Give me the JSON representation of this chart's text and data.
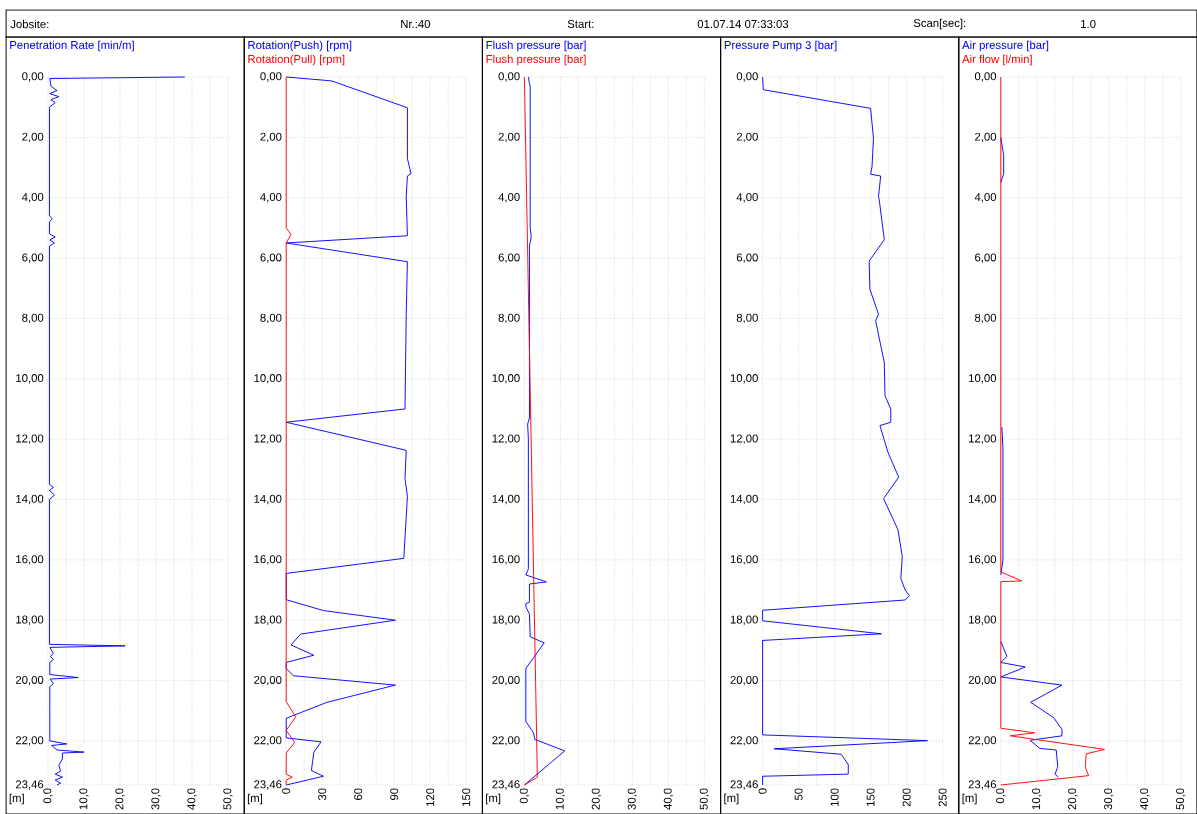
{
  "chart_data": [
    {
      "type": "other",
      "annotations": [
        "Jobsite:",
        "Nr.:40",
        "Start:",
        "01.07.14 07:33:03",
        "Scan[sec]:",
        "1.0"
      ]
    },
    {
      "type": "line",
      "ylabel": "[m]",
      "grid": true,
      "xlim": [
        0,
        50
      ],
      "ylim": [
        23.46,
        0
      ],
      "xticks": [
        {
          "value": 0,
          "label": "0,0"
        },
        {
          "value": 10,
          "label": "10,0"
        },
        {
          "value": 20,
          "label": "20,0"
        },
        {
          "value": 30,
          "label": "30,0"
        },
        {
          "value": 40,
          "label": "40,0"
        },
        {
          "value": 50,
          "label": "50,0"
        }
      ],
      "yticks": [
        {
          "value": 0,
          "label": "0,00"
        },
        {
          "value": 2,
          "label": "2,00"
        },
        {
          "value": 4,
          "label": "4,00"
        },
        {
          "value": 6,
          "label": "6,00"
        },
        {
          "value": 8,
          "label": "8,00"
        },
        {
          "value": 10,
          "label": "10,00"
        },
        {
          "value": 12,
          "label": "12,00"
        },
        {
          "value": 14,
          "label": "14,00"
        },
        {
          "value": 16,
          "label": "16,00"
        },
        {
          "value": 18,
          "label": "18,00"
        },
        {
          "value": 20,
          "label": "20,00"
        },
        {
          "value": 22,
          "label": "22,00"
        },
        {
          "value": 23.46,
          "label": "23,46"
        }
      ],
      "series": [
        {
          "name": "Penetration Rate [min/m]",
          "color": "#0000ff",
          "x": [
            38,
            0.5,
            0.8,
            2.5,
            0.5,
            3,
            0.8,
            2,
            0.4,
            0.4,
            1.2,
            0.4,
            0.4,
            2,
            0.5,
            1.8,
            0.4,
            0.4,
            1.5,
            0.4,
            1.8,
            0.4,
            0.4,
            21.4,
            0.5,
            1.5,
            0.6,
            1.5,
            0.5,
            0.5,
            8.4,
            0.6,
            1.5,
            0.5,
            0.5,
            5.2,
            1,
            2.5,
            10,
            4,
            4,
            3,
            3.5,
            2,
            4,
            2,
            3.5,
            2.5
          ],
          "values": [
            0,
            0.05,
            0.3,
            0.45,
            0.55,
            0.65,
            0.75,
            0.85,
            1.0,
            4.6,
            4.7,
            4.8,
            5.2,
            5.3,
            5.4,
            5.5,
            5.6,
            13.5,
            13.6,
            13.7,
            13.85,
            14.0,
            18.8,
            18.85,
            18.9,
            19.1,
            19.2,
            19.3,
            19.4,
            19.8,
            19.9,
            19.95,
            20.1,
            20.2,
            22.0,
            22.1,
            22.15,
            22.3,
            22.37,
            22.4,
            22.6,
            22.8,
            23.0,
            23.1,
            23.2,
            23.3,
            23.4,
            23.46
          ]
        }
      ]
    },
    {
      "type": "line",
      "ylabel": "[m]",
      "grid": true,
      "xlim": [
        0,
        150
      ],
      "ylim": [
        23.46,
        0
      ],
      "xticks": [
        0,
        30,
        60,
        90,
        120,
        150
      ],
      "yticks": [
        {
          "value": 0,
          "label": "0,00"
        },
        {
          "value": 2,
          "label": "2,00"
        },
        {
          "value": 4,
          "label": "4,00"
        },
        {
          "value": 6,
          "label": "6,00"
        },
        {
          "value": 8,
          "label": "8,00"
        },
        {
          "value": 10,
          "label": "10,00"
        },
        {
          "value": 12,
          "label": "12,00"
        },
        {
          "value": 14,
          "label": "14,00"
        },
        {
          "value": 16,
          "label": "16,00"
        },
        {
          "value": 18,
          "label": "18,00"
        },
        {
          "value": 20,
          "label": "20,00"
        },
        {
          "value": 22,
          "label": "22,00"
        },
        {
          "value": 23.46,
          "label": "23,46"
        }
      ],
      "series": [
        {
          "name": "Rotation(Push) [rpm]",
          "color": "#0000ff",
          "x": [
            0,
            38,
            101,
            101,
            104,
            101,
            100,
            101,
            0,
            101,
            100,
            99,
            0,
            100,
            99,
            101,
            98,
            0,
            0,
            31,
            91,
            12,
            4,
            23,
            0,
            0,
            6,
            91,
            34,
            0,
            0,
            29,
            23,
            21,
            31,
            0
          ],
          "values": [
            0,
            0.13,
            1.02,
            2.7,
            3.2,
            3.28,
            3.96,
            5.26,
            5.5,
            6.12,
            7.87,
            11.0,
            11.44,
            12.37,
            13.3,
            13.9,
            15.95,
            16.45,
            17.32,
            17.68,
            18.0,
            18.46,
            18.82,
            19.16,
            19.4,
            19.6,
            19.84,
            20.15,
            20.72,
            21.25,
            21.9,
            22.03,
            22.38,
            22.98,
            23.17,
            23.46
          ]
        },
        {
          "name": "Rotation(Pull) [rpm]",
          "color": "#ff0000",
          "x": [
            0,
            0,
            4,
            0,
            0,
            8,
            0,
            7,
            0,
            0,
            5,
            0,
            0
          ],
          "values": [
            0,
            5.0,
            5.22,
            5.5,
            20.7,
            21.2,
            21.65,
            22.05,
            22.4,
            23.1,
            23.2,
            23.3,
            23.46
          ]
        }
      ]
    },
    {
      "type": "line",
      "ylabel": "[m]",
      "grid": true,
      "xlim": [
        0,
        50
      ],
      "ylim": [
        23.46,
        0
      ],
      "xticks": [
        {
          "value": 0,
          "label": "0,0"
        },
        {
          "value": 10,
          "label": "10,0"
        },
        {
          "value": 20,
          "label": "20,0"
        },
        {
          "value": 30,
          "label": "30,0"
        },
        {
          "value": 40,
          "label": "40,0"
        },
        {
          "value": 50,
          "label": "50,0"
        }
      ],
      "yticks": [
        {
          "value": 0,
          "label": "0,00"
        },
        {
          "value": 2,
          "label": "2,00"
        },
        {
          "value": 4,
          "label": "4,00"
        },
        {
          "value": 6,
          "label": "6,00"
        },
        {
          "value": 8,
          "label": "8,00"
        },
        {
          "value": 10,
          "label": "10,00"
        },
        {
          "value": 12,
          "label": "12,00"
        },
        {
          "value": 14,
          "label": "14,00"
        },
        {
          "value": 16,
          "label": "16,00"
        },
        {
          "value": 18,
          "label": "18,00"
        },
        {
          "value": 20,
          "label": "20,00"
        },
        {
          "value": 22,
          "label": "22,00"
        },
        {
          "value": 23.46,
          "label": "23,46"
        }
      ],
      "series": [
        {
          "name": "Flush pressure [bar]",
          "color": "#0000ff",
          "x": [
            1.2,
            1.2,
            1.6,
            1.6,
            1.9,
            1.4,
            1.4,
            0.9,
            1.1,
            1.1,
            0.4,
            6.1,
            1.4,
            1.4,
            0.4,
            0.4,
            1.4,
            1.6,
            5.5,
            0.4,
            0.4,
            2.5,
            2.9,
            11.2,
            0
          ],
          "values": [
            0,
            0.1,
            0.3,
            5.0,
            5.3,
            5.6,
            11.3,
            11.5,
            12.0,
            16.3,
            16.5,
            16.73,
            16.8,
            17.4,
            17.45,
            17.55,
            17.8,
            18.55,
            18.75,
            19.6,
            21.35,
            21.73,
            21.95,
            22.33,
            23.46
          ]
        },
        {
          "name": "Flush pressure [bar]",
          "color": "#ff0000",
          "x": [
            0,
            3.6,
            0
          ],
          "values": [
            0,
            23.2,
            23.46
          ]
        }
      ]
    },
    {
      "type": "line",
      "ylabel": "[m]",
      "grid": true,
      "xlim": [
        0,
        250
      ],
      "ylim": [
        23.46,
        0
      ],
      "xticks": [
        0,
        50,
        100,
        150,
        200,
        250
      ],
      "yticks": [
        {
          "value": 0,
          "label": "0,00"
        },
        {
          "value": 2,
          "label": "2,00"
        },
        {
          "value": 4,
          "label": "4,00"
        },
        {
          "value": 6,
          "label": "6,00"
        },
        {
          "value": 8,
          "label": "8,00"
        },
        {
          "value": 10,
          "label": "10,00"
        },
        {
          "value": 12,
          "label": "12,00"
        },
        {
          "value": 14,
          "label": "14,00"
        },
        {
          "value": 16,
          "label": "16,00"
        },
        {
          "value": 18,
          "label": "18,00"
        },
        {
          "value": 20,
          "label": "20,00"
        },
        {
          "value": 22,
          "label": "22,00"
        },
        {
          "value": 23.46,
          "label": "23,46"
        }
      ],
      "series": [
        {
          "name": "Pressure Pump 3 [bar]",
          "color": "#0000ff",
          "x": [
            0,
            1,
            150,
            154,
            152,
            150,
            164,
            161,
            162,
            169,
            148,
            149,
            161,
            157,
            169,
            170,
            178,
            178,
            163,
            174,
            189,
            168,
            188,
            194,
            192,
            198,
            204,
            198,
            0,
            0,
            165,
            0,
            0,
            229,
            16,
            109,
            119,
            119,
            0,
            0
          ],
          "values": [
            0,
            0.42,
            1.04,
            2.03,
            2.97,
            3.22,
            3.28,
            3.96,
            4.07,
            5.39,
            6.1,
            7.03,
            7.86,
            8.08,
            9.46,
            10.56,
            11.0,
            11.44,
            11.55,
            12.43,
            13.26,
            13.97,
            15.0,
            15.89,
            16.62,
            17.0,
            17.18,
            17.33,
            17.67,
            18.02,
            18.45,
            18.67,
            21.8,
            21.99,
            22.26,
            22.44,
            22.78,
            23.1,
            23.17,
            23.46
          ]
        }
      ]
    },
    {
      "type": "line",
      "ylabel": "[m]",
      "grid": true,
      "xlim": [
        0,
        50
      ],
      "ylim": [
        23.46,
        0
      ],
      "xticks": [
        {
          "value": 0,
          "label": "0,0"
        },
        {
          "value": 10,
          "label": "10,0"
        },
        {
          "value": 20,
          "label": "20,0"
        },
        {
          "value": 30,
          "label": "30,0"
        },
        {
          "value": 40,
          "label": "40,0"
        },
        {
          "value": 50,
          "label": "50,0"
        }
      ],
      "yticks": [
        {
          "value": 0,
          "label": "0,00"
        },
        {
          "value": 2,
          "label": "2,00"
        },
        {
          "value": 4,
          "label": "4,00"
        },
        {
          "value": 6,
          "label": "6,00"
        },
        {
          "value": 8,
          "label": "8,00"
        },
        {
          "value": 10,
          "label": "10,00"
        },
        {
          "value": 12,
          "label": "12,00"
        },
        {
          "value": 14,
          "label": "14,00"
        },
        {
          "value": 16,
          "label": "16,00"
        },
        {
          "value": 18,
          "label": "18,00"
        },
        {
          "value": 20,
          "label": "20,00"
        },
        {
          "value": 22,
          "label": "22,00"
        },
        {
          "value": 23.46,
          "label": "23,46"
        }
      ],
      "series": [
        {
          "name": "Air pressure [bar]",
          "color": "#0000ff",
          "x": [
            0,
            0.8,
            0.8,
            0,
            null,
            0.3,
            0.6,
            0.6,
            0,
            null,
            0,
            1.7,
            0,
            6.8,
            0,
            17,
            8.3,
            14.7,
            17,
            17,
            8.1,
            10.9,
            15.4,
            15.8,
            15.1,
            16
          ],
          "values": [
            2.0,
            2.6,
            3.2,
            3.5,
            null,
            11.6,
            12.3,
            16.0,
            16.5,
            null,
            18.7,
            19.2,
            19.4,
            19.55,
            19.88,
            20.15,
            20.72,
            21.23,
            21.62,
            21.83,
            21.98,
            22.25,
            22.3,
            22.85,
            23.1,
            23.2
          ]
        },
        {
          "name": "Air flow [l/min]",
          "color": "#ff0000",
          "x": [
            0,
            0,
            5.8,
            0,
            0,
            9.4,
            2.6,
            28.8,
            23.7,
            23.5,
            24.4,
            0
          ],
          "values": [
            0,
            16.4,
            16.7,
            16.72,
            21.58,
            21.73,
            21.83,
            22.28,
            22.43,
            22.88,
            23.15,
            23.46
          ]
        }
      ]
    }
  ]
}
